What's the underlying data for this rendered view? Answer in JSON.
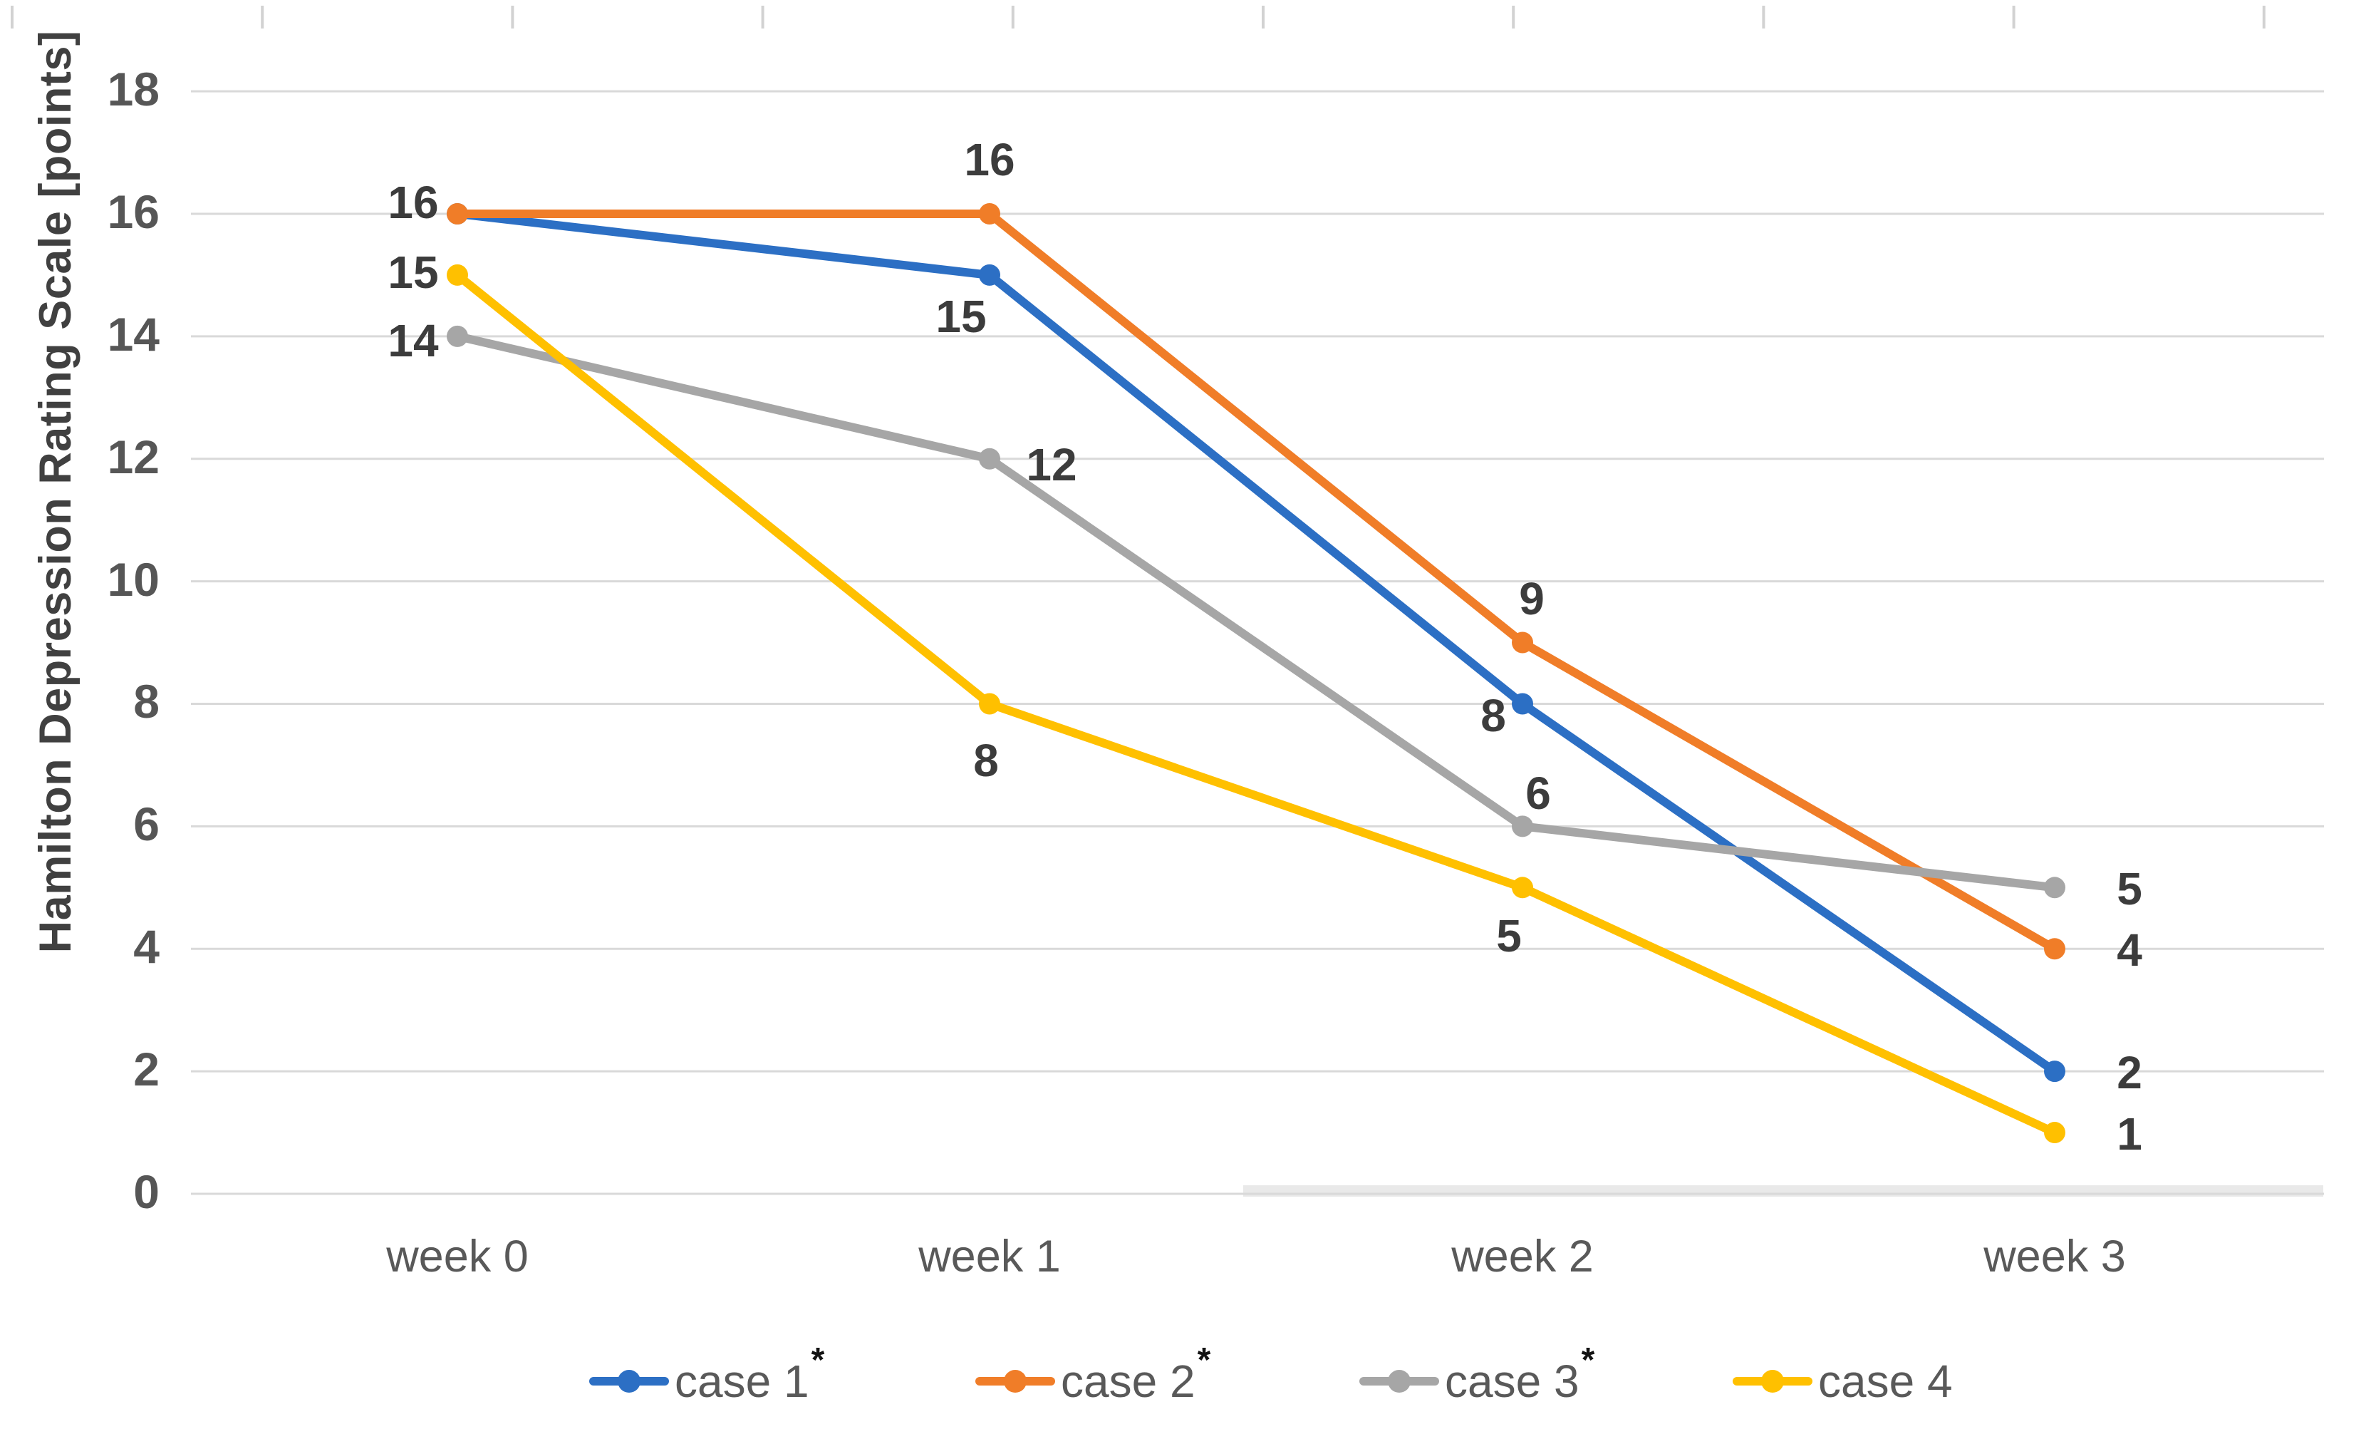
{
  "chart_data": {
    "type": "line",
    "title": "",
    "xlabel": "",
    "ylabel": "Hamilton Depression Rating Scale [points]",
    "categories": [
      "week 0",
      "week 1",
      "week 2",
      "week 3"
    ],
    "ylim": [
      0,
      18
    ],
    "yticks": [
      0,
      2,
      4,
      6,
      8,
      10,
      12,
      14,
      16,
      18
    ],
    "grid": "horizontal",
    "gridline_color": "#D9D9D9",
    "legend_position": "bottom",
    "series": [
      {
        "name": "case 1",
        "legend_suffix": "*",
        "color": "#2C6FC4",
        "values": [
          16,
          15,
          8,
          2
        ],
        "point_labels": [
          null,
          {
            "text": "15",
            "dx": -40,
            "dy": 58
          },
          {
            "text": "8",
            "dx": -41,
            "dy": 17
          },
          {
            "text": "2",
            "dx": 105,
            "dy": 2
          }
        ]
      },
      {
        "name": "case 2",
        "legend_suffix": "*",
        "color": "#F07D28",
        "values": [
          16,
          16,
          9,
          4
        ],
        "point_labels": [
          {
            "text": "16",
            "dx": -62,
            "dy": -16
          },
          {
            "text": "16",
            "dx": 0,
            "dy": -76
          },
          {
            "text": "9",
            "dx": 13,
            "dy": -62
          },
          {
            "text": "4",
            "dx": 105,
            "dy": 2
          }
        ]
      },
      {
        "name": "case 3",
        "legend_suffix": "*",
        "color": "#A6A6A6",
        "values": [
          14,
          12,
          6,
          5
        ],
        "point_labels": [
          {
            "text": "14",
            "dx": -62,
            "dy": 6
          },
          {
            "text": "12",
            "dx": 87,
            "dy": 8
          },
          {
            "text": "6",
            "dx": 22,
            "dy": -46
          },
          {
            "text": "5",
            "dx": 105,
            "dy": 2
          }
        ]
      },
      {
        "name": "case 4",
        "legend_suffix": "",
        "color": "#FFC000",
        "values": [
          15,
          8,
          5,
          1
        ],
        "point_labels": [
          {
            "text": "15",
            "dx": -62,
            "dy": -4
          },
          {
            "text": "8",
            "dx": -5,
            "dy": 80
          },
          {
            "text": "5",
            "dx": -19,
            "dy": 68
          },
          {
            "text": "1",
            "dx": 105,
            "dy": 2
          }
        ]
      }
    ]
  }
}
